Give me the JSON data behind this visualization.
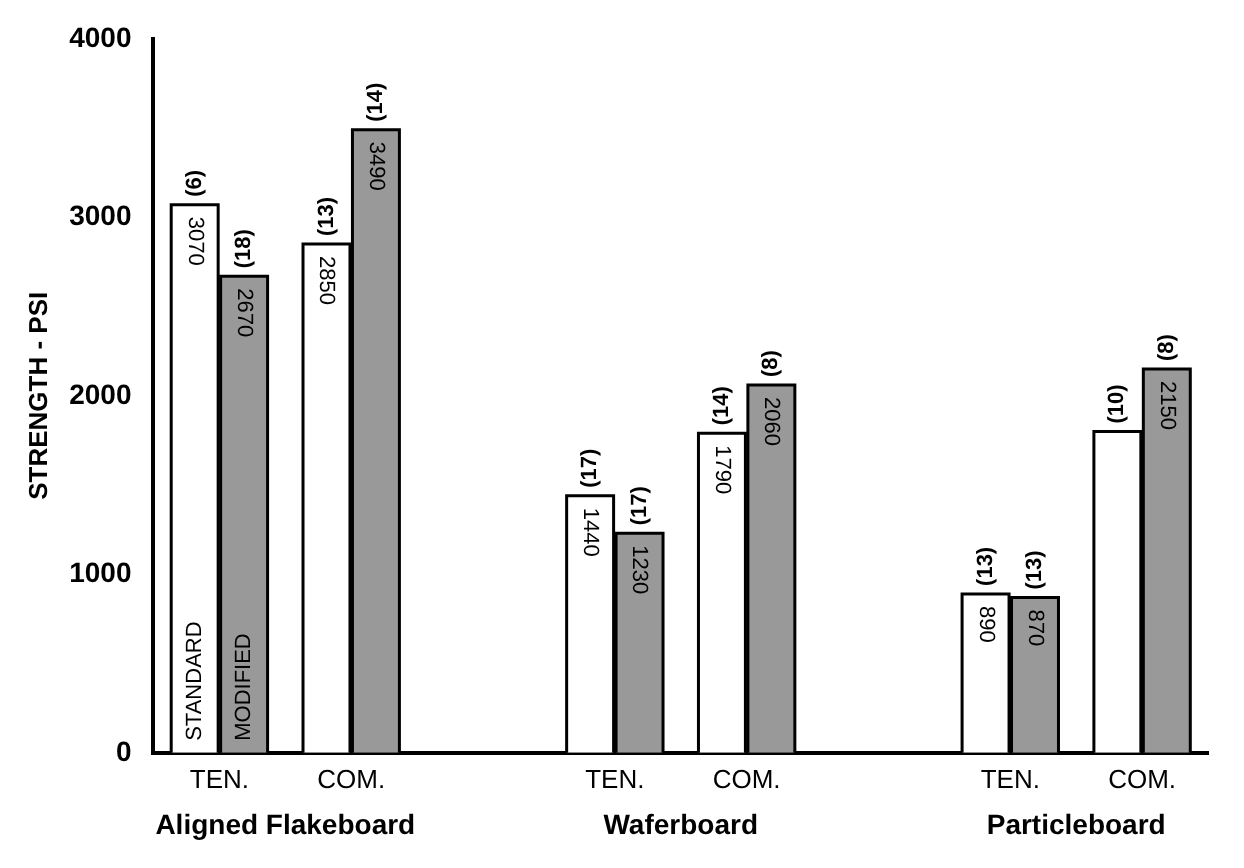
{
  "chart_data": {
    "type": "bar",
    "ylabel": "STRENGTH - PSI",
    "categories": [
      "TEN.",
      "COM.",
      null,
      "TEN.",
      "COM.",
      null,
      "TEN.",
      "COM."
    ],
    "series": [
      {
        "name": "STANDARD",
        "color": "#ffffff",
        "values": [
          3070,
          2850,
          null,
          1440,
          1790,
          null,
          890,
          1800
        ],
        "value_labels": [
          "3070",
          "2850",
          null,
          "1440",
          "1790",
          null,
          "890",
          null
        ]
      },
      {
        "name": "MODIFIED",
        "color": "#999999",
        "values": [
          2670,
          3490,
          null,
          1230,
          2060,
          null,
          870,
          2150
        ],
        "value_labels": [
          "2670",
          "3490",
          null,
          "1230",
          "2060",
          null,
          "870",
          "2150"
        ]
      }
    ],
    "annotations": [
      "Aligned Flakeboard",
      "Waferboard",
      "Particleboard",
      "(6)",
      "(18)",
      "(13)",
      "(14)",
      "(17)",
      "(17)",
      "(14)",
      "(8)",
      "(13)",
      "(13)",
      "(10)",
      "(8)"
    ],
    "ylim": [
      0,
      4000
    ],
    "yticks": [
      0,
      1000,
      2000,
      3000,
      4000
    ],
    "grid": false,
    "legend": false
  }
}
